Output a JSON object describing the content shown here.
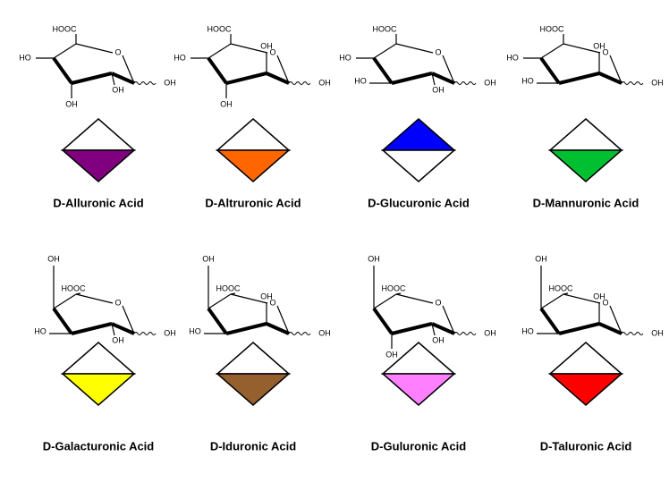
{
  "items": [
    {
      "name": "D-Alluronic Acid",
      "color": "#800080",
      "filled_half": "bottom",
      "labels": [
        "HOOC",
        "O",
        "HO",
        "OH",
        "OH",
        "OH"
      ]
    },
    {
      "name": "D-Altruronic Acid",
      "color": "#ff6600",
      "filled_half": "bottom",
      "labels": [
        "HOOC",
        "O",
        "HO",
        "OH",
        "OH",
        "OH"
      ]
    },
    {
      "name": "D-Glucuronic Acid",
      "color": "#0000ff",
      "filled_half": "top",
      "labels": [
        "HOOC",
        "O",
        "HO",
        "HO",
        "OH",
        "OH"
      ]
    },
    {
      "name": "D-Mannuronic Acid",
      "color": "#00c032",
      "filled_half": "bottom",
      "labels": [
        "HOOC",
        "O",
        "HO",
        "HO",
        "OH",
        "OH"
      ]
    },
    {
      "name": "D-Galacturonic Acid",
      "color": "#ffff00",
      "filled_half": "bottom",
      "labels": [
        "OH",
        "HOOC",
        "O",
        "HO",
        "OH",
        "OH"
      ]
    },
    {
      "name": "D-Iduronic Acid",
      "color": "#96602e",
      "filled_half": "bottom",
      "labels": [
        "OH",
        "HOOC",
        "OH",
        "O",
        "HO",
        "OH"
      ]
    },
    {
      "name": "D-Guluronic Acid",
      "color": "#ff80ff",
      "filled_half": "bottom",
      "labels": [
        "OH",
        "HOOC",
        "O",
        "OH",
        "OH",
        "OH"
      ]
    },
    {
      "name": "D-Taluronic Acid",
      "color": "#ff0000",
      "filled_half": "bottom",
      "labels": [
        "OH",
        "HOOC",
        "OH",
        "O",
        "HO",
        "OH"
      ]
    }
  ]
}
